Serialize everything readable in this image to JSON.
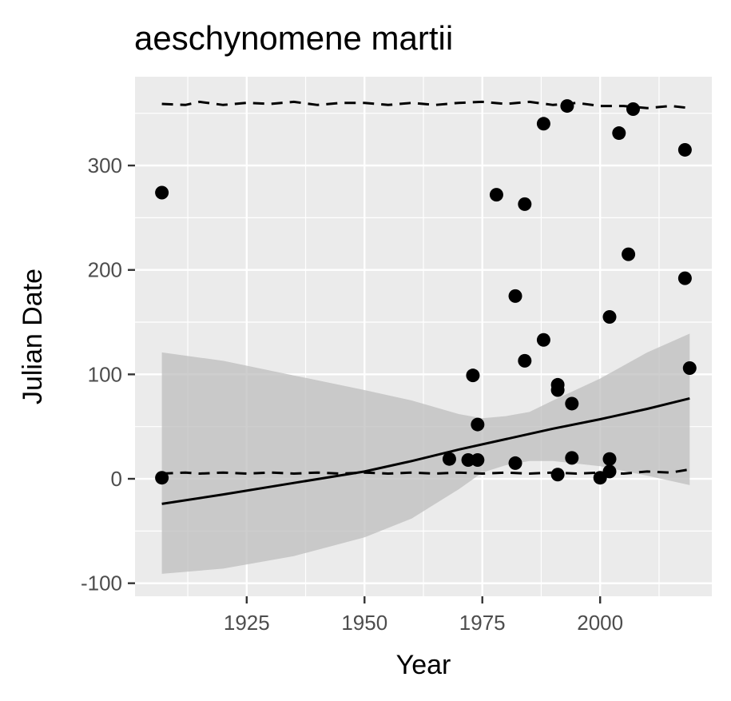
{
  "chart_data": {
    "type": "scatter",
    "title": "aeschynomene martii",
    "xlabel": "Year",
    "ylabel": "Julian Date",
    "xlim": [
      1901.3,
      2023.7
    ],
    "ylim": [
      -112.5,
      385
    ],
    "x_ticks": [
      1925,
      1950,
      1975,
      2000
    ],
    "x_tick_labels": [
      "1925",
      "1950",
      "1975",
      "2000"
    ],
    "y_ticks": [
      -100,
      0,
      100,
      200,
      300
    ],
    "y_tick_labels": [
      "-100",
      "0",
      "100",
      "200",
      "300"
    ],
    "grid": true,
    "colors": {
      "panel": "#ebebeb",
      "grid": "#ffffff",
      "points": "#000000",
      "ribbon": "#bebebe",
      "fit_line": "#000000",
      "quantile_lines": "#000000"
    },
    "points": [
      {
        "x": 1907,
        "y": 274
      },
      {
        "x": 1907,
        "y": 1
      },
      {
        "x": 1968,
        "y": 19
      },
      {
        "x": 1972,
        "y": 18
      },
      {
        "x": 1973,
        "y": 99
      },
      {
        "x": 1974,
        "y": 52
      },
      {
        "x": 1974,
        "y": 18
      },
      {
        "x": 1978,
        "y": 272
      },
      {
        "x": 1982,
        "y": 175
      },
      {
        "x": 1982,
        "y": 15
      },
      {
        "x": 1984,
        "y": 263
      },
      {
        "x": 1984,
        "y": 113
      },
      {
        "x": 1988,
        "y": 340
      },
      {
        "x": 1988,
        "y": 133
      },
      {
        "x": 1991,
        "y": 90
      },
      {
        "x": 1991,
        "y": 85
      },
      {
        "x": 1991,
        "y": 4
      },
      {
        "x": 1993,
        "y": 357
      },
      {
        "x": 1994,
        "y": 72
      },
      {
        "x": 1994,
        "y": 20
      },
      {
        "x": 2000,
        "y": 1
      },
      {
        "x": 2002,
        "y": 155
      },
      {
        "x": 2002,
        "y": 19
      },
      {
        "x": 2002,
        "y": 7
      },
      {
        "x": 2004,
        "y": 331
      },
      {
        "x": 2006,
        "y": 215
      },
      {
        "x": 2007,
        "y": 354
      },
      {
        "x": 2018,
        "y": 315
      },
      {
        "x": 2018,
        "y": 192
      },
      {
        "x": 2019,
        "y": 106
      }
    ],
    "fit_line": {
      "x": [
        1907,
        1920,
        1935,
        1950,
        1960,
        1970,
        1980,
        1990,
        2000,
        2010,
        2019
      ],
      "y": [
        -24,
        -15,
        -4,
        7,
        17,
        28,
        38,
        48,
        57,
        67,
        77
      ]
    },
    "confidence_band": {
      "x": [
        1907,
        1920,
        1935,
        1950,
        1960,
        1970,
        1975,
        1980,
        1985,
        1990,
        2000,
        2010,
        2019
      ],
      "upper": [
        121,
        113,
        99,
        85,
        75,
        62,
        58,
        60,
        64,
        75,
        96,
        121,
        139
      ],
      "lower": [
        -91,
        -86,
        -74,
        -56,
        -38,
        -10,
        6,
        13,
        17,
        17,
        12,
        3,
        -6
      ]
    },
    "upper_quantile": {
      "x": [
        1907,
        1912,
        1915,
        1920,
        1925,
        1930,
        1935,
        1940,
        1945,
        1950,
        1955,
        1960,
        1965,
        1970,
        1975,
        1980,
        1985,
        1990,
        1995,
        2000,
        2005,
        2010,
        2015,
        2019
      ],
      "y": [
        359,
        358,
        361,
        358,
        360,
        359,
        361,
        358,
        360,
        360,
        358,
        360,
        358,
        360,
        361,
        359,
        361,
        358,
        360,
        357,
        357,
        355,
        357,
        355
      ]
    },
    "lower_quantile": {
      "x": [
        1907,
        1912,
        1915,
        1920,
        1925,
        1930,
        1935,
        1940,
        1945,
        1950,
        1955,
        1960,
        1965,
        1970,
        1975,
        1980,
        1985,
        1990,
        1995,
        2000,
        2005,
        2010,
        2015,
        2019
      ],
      "y": [
        5,
        6,
        5,
        6,
        5,
        6,
        5,
        6,
        5,
        6,
        5,
        6,
        5,
        6,
        5,
        6,
        5,
        6,
        5,
        6,
        5,
        7,
        6,
        9
      ]
    }
  }
}
